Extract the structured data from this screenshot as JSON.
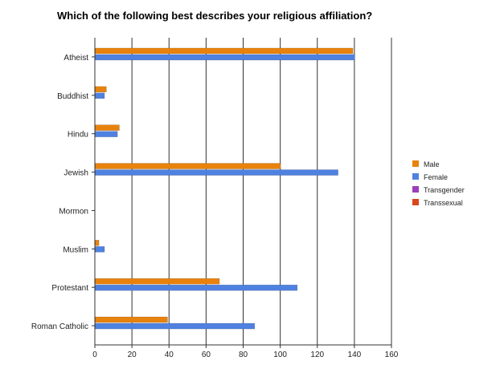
{
  "chart_data": {
    "type": "bar",
    "orientation": "horizontal",
    "title": "Which of the following best describes your religious affiliation?",
    "categories": [
      "Atheist",
      "Buddhist",
      "Hindu",
      "Jewish",
      "Mormon",
      "Muslim",
      "Protestant",
      "Roman Catholic"
    ],
    "series": [
      {
        "name": "Male",
        "color": "#e8820c",
        "values": [
          139,
          6,
          13,
          100,
          0,
          2,
          67,
          39
        ]
      },
      {
        "name": "Female",
        "color": "#4f81e0",
        "values": [
          140,
          5,
          12,
          131,
          0,
          5,
          109,
          86
        ]
      },
      {
        "name": "Transgender",
        "color": "#9c3fb8",
        "values": [
          0,
          0,
          0,
          0,
          0,
          0,
          0,
          0
        ]
      },
      {
        "name": "Transsexual",
        "color": "#d9471c",
        "values": [
          0,
          0,
          0,
          0,
          0,
          0,
          0,
          0
        ]
      }
    ],
    "xlim": [
      0,
      160
    ],
    "xticks": [
      0,
      20,
      40,
      60,
      80,
      100,
      120,
      140,
      160
    ],
    "grid": true,
    "legend_position": "right"
  }
}
